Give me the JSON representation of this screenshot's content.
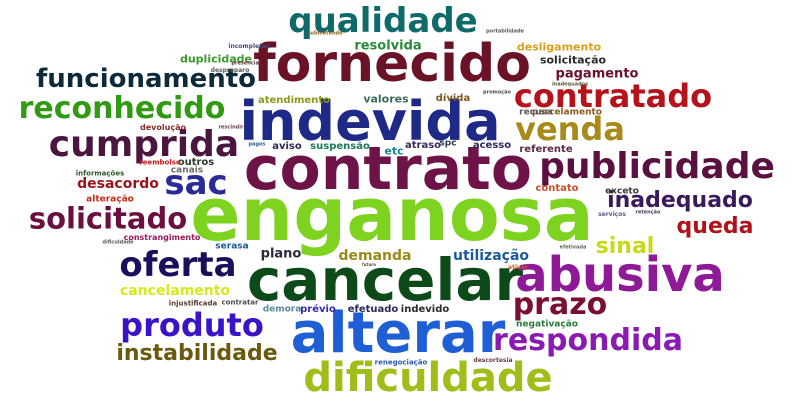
{
  "words": [
    {
      "text": "enganosa",
      "color": "#7ed321"
    },
    {
      "text": "contrato",
      "color": "#6d1347"
    },
    {
      "text": "indevida",
      "color": "#1f2a86"
    },
    {
      "text": "fornecido",
      "color": "#6a1327"
    },
    {
      "text": "cancelar",
      "color": "#0d4a1a"
    },
    {
      "text": "alterar",
      "color": "#1e5fd6"
    },
    {
      "text": "abusiva",
      "color": "#8e1a98"
    },
    {
      "text": "publicidade",
      "color": "#5a1140"
    },
    {
      "text": "cumprida",
      "color": "#4a1640"
    },
    {
      "text": "dificuldade",
      "color": "#9fbe1a"
    },
    {
      "text": "qualidade",
      "color": "#0f6a6a"
    },
    {
      "text": "contratado",
      "color": "#b5121b"
    },
    {
      "text": "funcionamento",
      "color": "#0d2a3a"
    },
    {
      "text": "reconhecido",
      "color": "#2f9a12"
    },
    {
      "text": "venda",
      "color": "#a88a1a"
    },
    {
      "text": "solicitado",
      "color": "#6a0f3f"
    },
    {
      "text": "oferta",
      "color": "#1a0f5a"
    },
    {
      "text": "sac",
      "color": "#2a2a98"
    },
    {
      "text": "produto",
      "color": "#3a12c8"
    },
    {
      "text": "respondida",
      "color": "#8a1ab0"
    },
    {
      "text": "prazo",
      "color": "#7a0f2f"
    },
    {
      "text": "instabilidade",
      "color": "#6a5a0f"
    },
    {
      "text": "inadequado",
      "color": "#3a1a5a"
    },
    {
      "text": "queda",
      "color": "#b0121b"
    },
    {
      "text": "sinal",
      "color": "#c8d81a"
    },
    {
      "text": "cancelamento",
      "color": "#d8e81a"
    },
    {
      "text": "demanda",
      "color": "#9a8a1a"
    },
    {
      "text": "utilização",
      "color": "#1a5a98"
    },
    {
      "text": "resolvida",
      "color": "#2a8a3a"
    },
    {
      "text": "pagamento",
      "color": "#6a0f2f"
    },
    {
      "text": "plano",
      "color": "#2a2a3a"
    },
    {
      "text": "desacordo",
      "color": "#a0121b"
    },
    {
      "text": "duplicidade",
      "color": "#3a9a2a"
    },
    {
      "text": "solicitação",
      "color": "#2a2a2a"
    },
    {
      "text": "desligamento",
      "color": "#d8a01a"
    },
    {
      "text": "atendimento",
      "color": "#8a9a1a"
    },
    {
      "text": "valores",
      "color": "#3a6a5a"
    },
    {
      "text": "aviso",
      "color": "#2a2a5a"
    },
    {
      "text": "suspensão",
      "color": "#1a7a5a"
    },
    {
      "text": "etc",
      "color": "#1a8a9a"
    },
    {
      "text": "atraso",
      "color": "#3a2a5a"
    },
    {
      "text": "acesso",
      "color": "#2a2a5a"
    },
    {
      "text": "referente",
      "color": "#5a2a4a"
    },
    {
      "text": "contato",
      "color": "#c8502a"
    },
    {
      "text": "exceto",
      "color": "#3a3a3a"
    },
    {
      "text": "outros",
      "color": "#2a3a2a"
    },
    {
      "text": "parcelamento",
      "color": "#8a5a1a"
    },
    {
      "text": "recusa",
      "color": "#5a5a5a"
    },
    {
      "text": "dívida",
      "color": "#7a5a1a"
    },
    {
      "text": "spc",
      "color": "#2a3a5a"
    },
    {
      "text": "efetuado",
      "color": "#2a2a5a"
    },
    {
      "text": "indevido",
      "color": "#2a2a2a"
    },
    {
      "text": "prévio",
      "color": "#3a2ab0"
    },
    {
      "text": "demora",
      "color": "#5a8a9a"
    },
    {
      "text": "negativação",
      "color": "#2a7a3a"
    },
    {
      "text": "alteração",
      "color": "#c82a1a"
    },
    {
      "text": "constrangimento",
      "color": "#9a1a5a"
    },
    {
      "text": "serasa",
      "color": "#1a5a9a"
    },
    {
      "text": "canais",
      "color": "#6a6a6a"
    },
    {
      "text": "devolução",
      "color": "#8a2a2a"
    },
    {
      "text": "reembolso",
      "color": "#c81a1a"
    },
    {
      "text": "informações",
      "color": "#2a5a2a"
    },
    {
      "text": "despreparo",
      "color": "#5a5a5a"
    },
    {
      "text": "incompletas",
      "color": "#4a4a7a"
    },
    {
      "text": "presencial",
      "color": "#5a3a3a"
    },
    {
      "text": "submetendo",
      "color": "#8a5a1a"
    },
    {
      "text": "portabilidade",
      "color": "#5a5a5a"
    },
    {
      "text": "injustificada",
      "color": "#5a3a2a"
    },
    {
      "text": "contratar",
      "color": "#4a4a4a"
    },
    {
      "text": "renegociação",
      "color": "#2a5ab0"
    },
    {
      "text": "descortesia",
      "color": "#6a3a3a"
    },
    {
      "text": "promoção",
      "color": "#4a4a4a"
    },
    {
      "text": "ativar",
      "color": "#c85a1a"
    },
    {
      "text": "retenção",
      "color": "#4a3a5a"
    },
    {
      "text": "serviços",
      "color": "#5a5a8a"
    },
    {
      "text": "efetivada",
      "color": "#5a6a5a"
    },
    {
      "text": "dificuldade",
      "color": "#5a5a5a"
    },
    {
      "text": "rescindir",
      "color": "#6a3a4a"
    },
    {
      "text": "pagos",
      "color": "#2a5a9a"
    },
    {
      "text": "futuro",
      "color": "#5a4a3a"
    },
    {
      "text": "inadequados",
      "color": "#5a5a3a"
    }
  ]
}
